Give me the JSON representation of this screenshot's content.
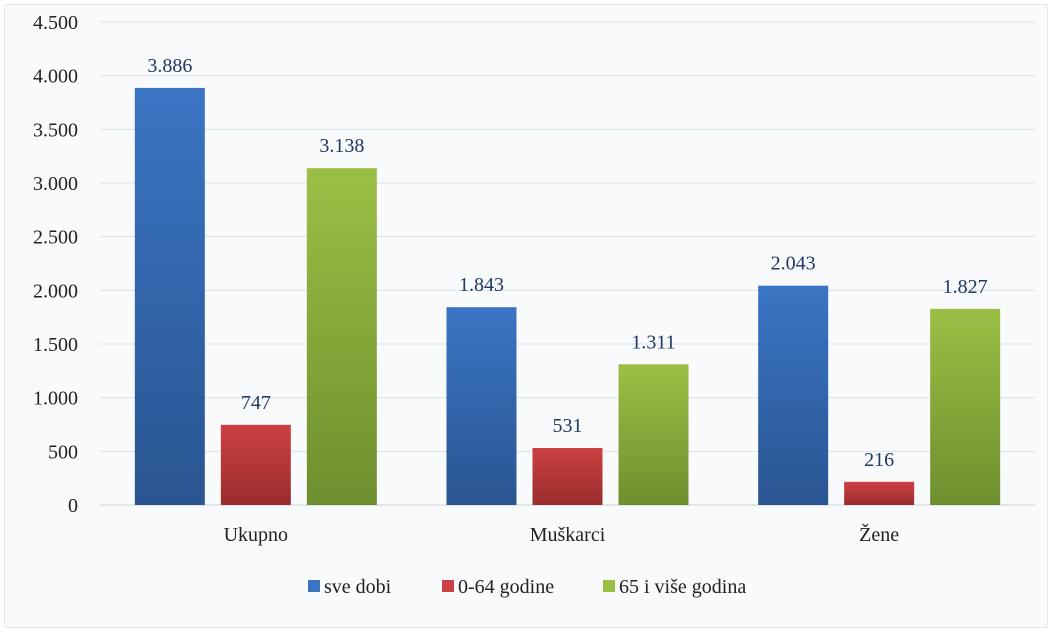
{
  "chart_data": {
    "type": "bar",
    "categories": [
      "Ukupno",
      "Muškarci",
      "Žene"
    ],
    "series": [
      {
        "name": "sve dobi",
        "values": [
          3886,
          1843,
          2043
        ],
        "labels": [
          "3.886",
          "1.843",
          "2.043"
        ],
        "color": "#3a75c4",
        "color_dark": "#2a5591"
      },
      {
        "name": "0-64 godine",
        "values": [
          747,
          531,
          216
        ],
        "labels": [
          "747",
          "531",
          "216"
        ],
        "color": "#cc4141",
        "color_dark": "#9a2d2d"
      },
      {
        "name": "65 i više godina",
        "values": [
          3138,
          1311,
          1827
        ],
        "labels": [
          "3.138",
          "1.311",
          "1.827"
        ],
        "color": "#9bbf45",
        "color_dark": "#6e8f2e"
      }
    ],
    "yticks": [
      {
        "value": 0,
        "label": "0"
      },
      {
        "value": 500,
        "label": "500"
      },
      {
        "value": 1000,
        "label": "1.000"
      },
      {
        "value": 1500,
        "label": "1.500"
      },
      {
        "value": 2000,
        "label": "2.000"
      },
      {
        "value": 2500,
        "label": "2.500"
      },
      {
        "value": 3000,
        "label": "3.000"
      },
      {
        "value": 3500,
        "label": "3.500"
      },
      {
        "value": 4000,
        "label": "4.000"
      },
      {
        "value": 4500,
        "label": "4.500"
      }
    ],
    "ylim": [
      0,
      4500
    ],
    "grid": true,
    "legend_position": "bottom",
    "title": "",
    "xlabel": "",
    "ylabel": ""
  }
}
